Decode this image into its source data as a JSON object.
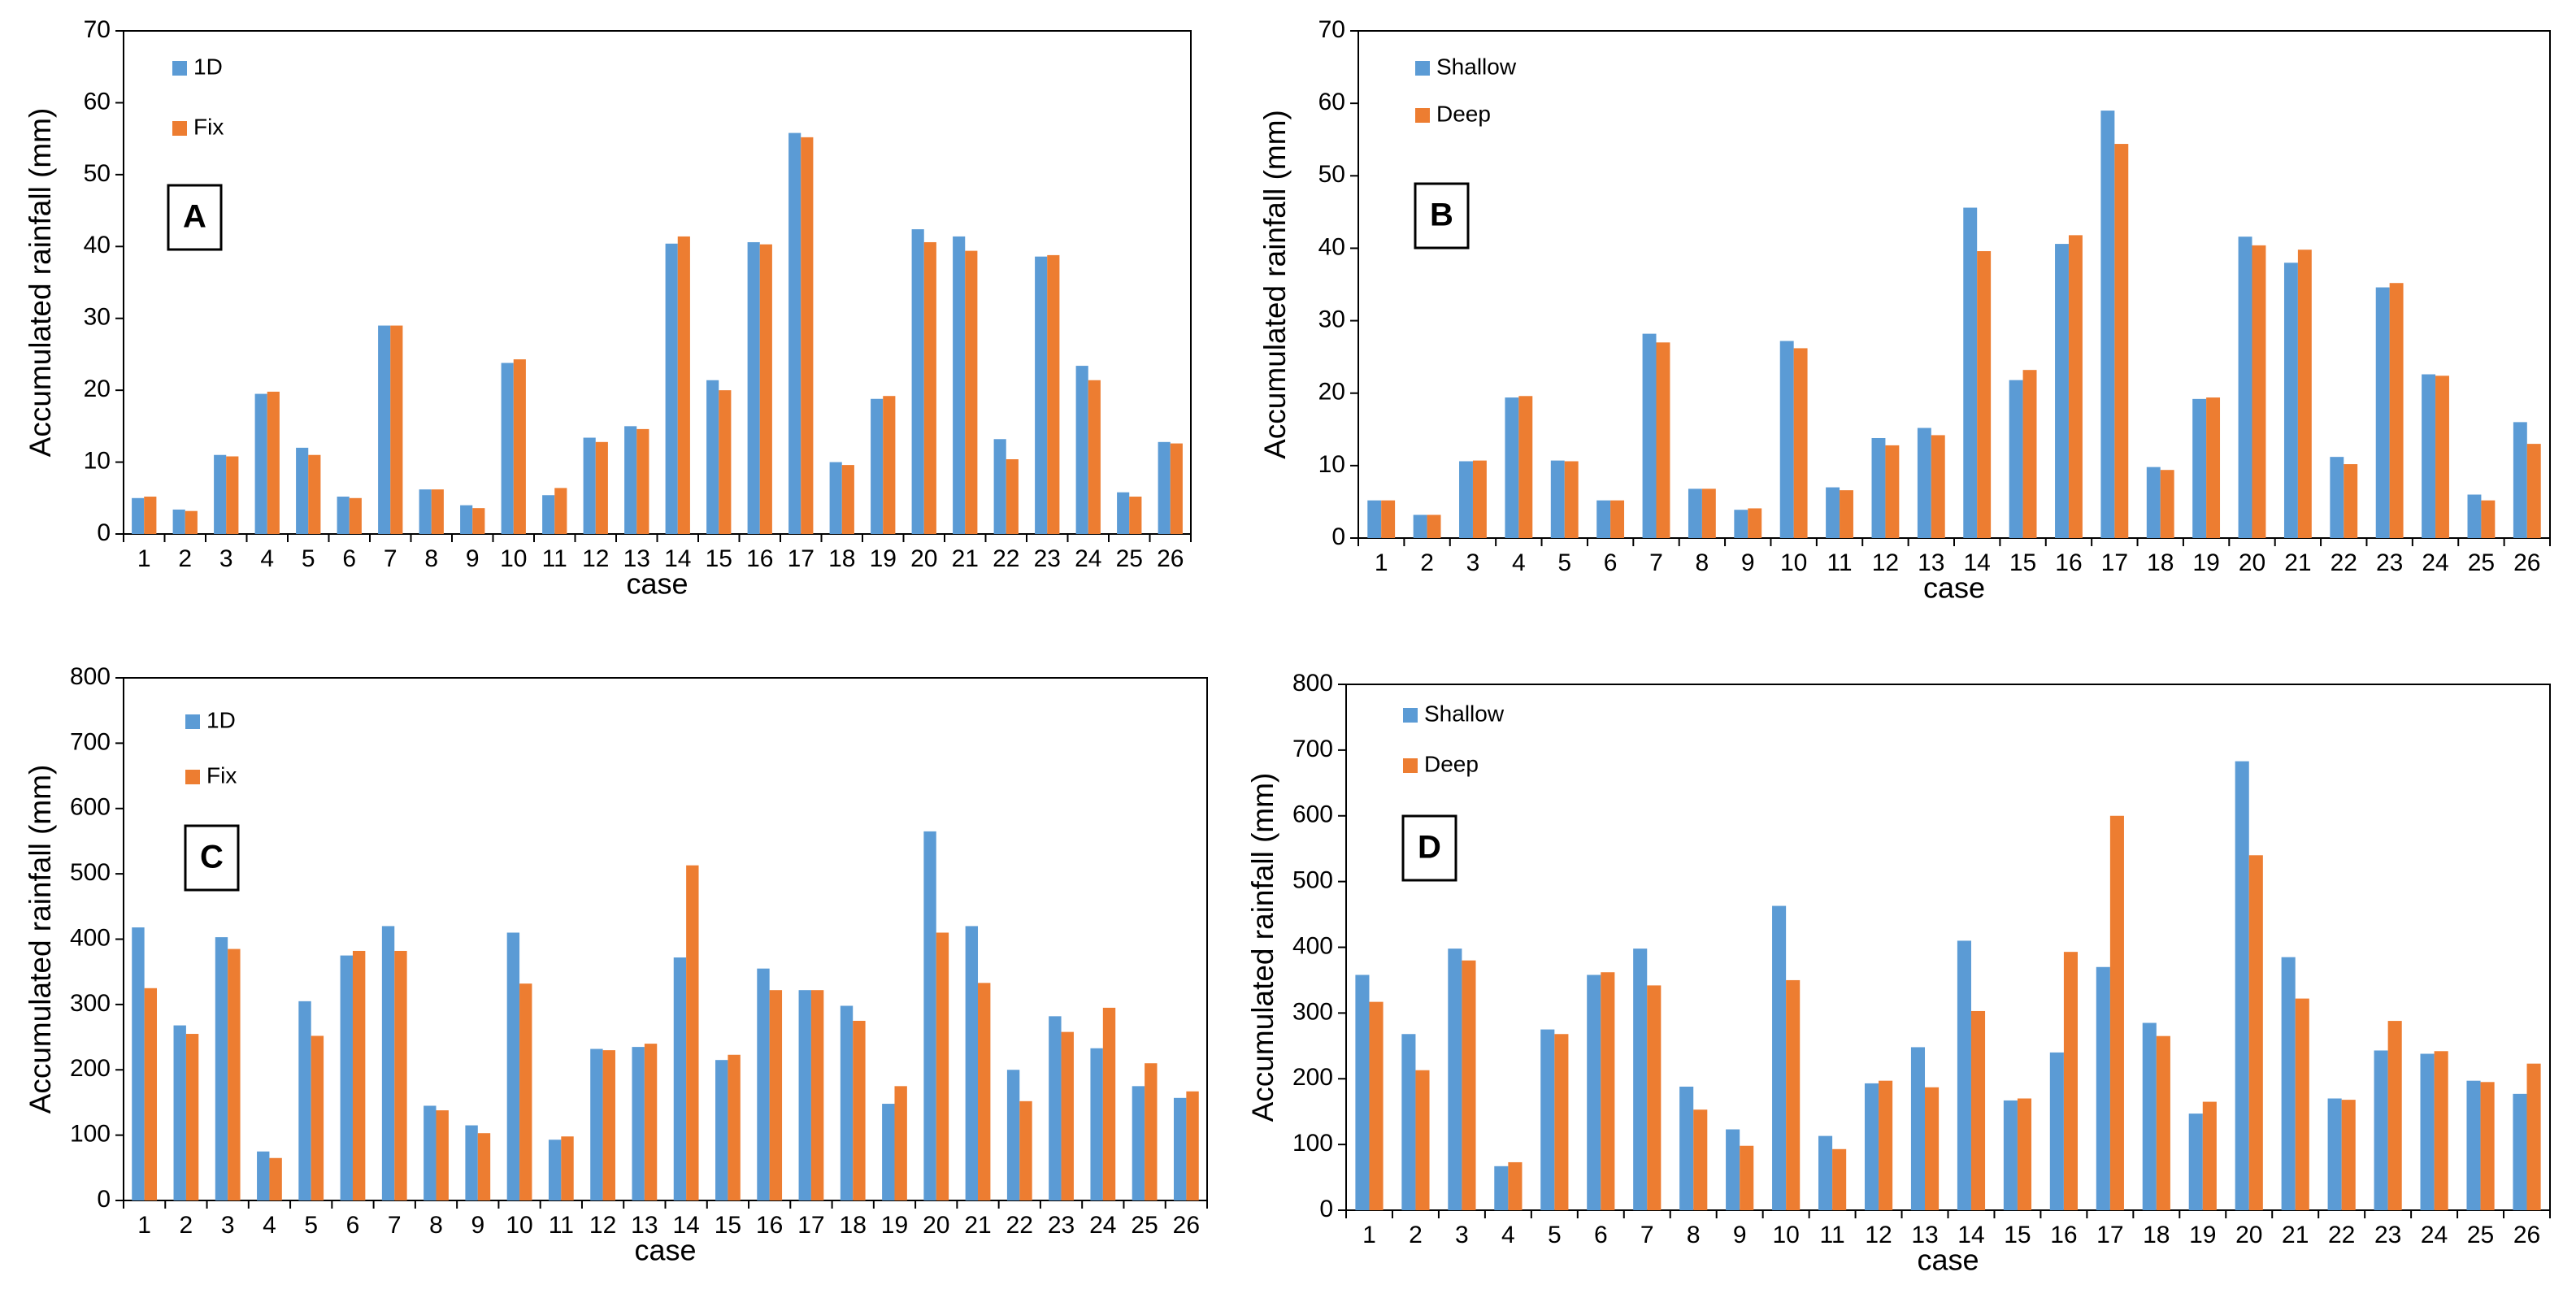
{
  "chart_data": [
    {
      "type": "bar",
      "label": "A",
      "ylabel": "Accumulated rainfall (mm)",
      "xlabel": "case",
      "categories": [
        "1",
        "2",
        "3",
        "4",
        "5",
        "6",
        "7",
        "8",
        "9",
        "10",
        "11",
        "12",
        "13",
        "14",
        "15",
        "16",
        "17",
        "18",
        "19",
        "20",
        "21",
        "22",
        "23",
        "24",
        "25",
        "26"
      ],
      "series": [
        {
          "name": "1D",
          "color": "#5b9bd5",
          "values": [
            5,
            3.4,
            11,
            19.5,
            12,
            5.2,
            29,
            6.2,
            4,
            23.8,
            5.4,
            13.4,
            15,
            40.4,
            21.4,
            40.6,
            55.8,
            10,
            18.8,
            42.4,
            41.4,
            13.2,
            38.6,
            23.4,
            5.8,
            12.8
          ]
        },
        {
          "name": "Fix",
          "color": "#ed7d31",
          "values": [
            5.2,
            3.2,
            10.8,
            19.8,
            11,
            5,
            29,
            6.2,
            3.6,
            24.3,
            6.4,
            12.8,
            14.6,
            41.4,
            20,
            40.3,
            55.2,
            9.6,
            19.2,
            40.6,
            39.4,
            10.4,
            38.8,
            21.4,
            5.2,
            12.6
          ]
        }
      ],
      "ylim": [
        0,
        70
      ],
      "yticks": [
        0,
        10,
        20,
        30,
        40,
        50,
        60,
        70
      ],
      "legend": "upper left"
    },
    {
      "type": "bar",
      "label": "B",
      "ylabel": "Accumulated rainfall (mm)",
      "xlabel": "case",
      "categories": [
        "1",
        "2",
        "3",
        "4",
        "5",
        "6",
        "7",
        "8",
        "9",
        "10",
        "11",
        "12",
        "13",
        "14",
        "15",
        "16",
        "17",
        "18",
        "19",
        "20",
        "21",
        "22",
        "23",
        "24",
        "25",
        "26"
      ],
      "series": [
        {
          "name": "Shallow",
          "color": "#5b9bd5",
          "values": [
            5.2,
            3.2,
            10.6,
            19.4,
            10.7,
            5.2,
            28.2,
            6.8,
            3.9,
            27.2,
            7,
            13.8,
            15.2,
            45.6,
            21.8,
            40.6,
            59,
            9.8,
            19.2,
            41.6,
            38,
            11.2,
            34.6,
            22.6,
            6,
            16
          ]
        },
        {
          "name": "Deep",
          "color": "#ed7d31",
          "values": [
            5.2,
            3.2,
            10.7,
            19.6,
            10.6,
            5.2,
            27,
            6.8,
            4.1,
            26.2,
            6.6,
            12.8,
            14.2,
            39.6,
            23.2,
            41.8,
            54.4,
            9.4,
            19.4,
            40.4,
            39.8,
            10.2,
            35.2,
            22.4,
            5.2,
            13
          ]
        }
      ],
      "ylim": [
        0,
        70
      ],
      "yticks": [
        0,
        10,
        20,
        30,
        40,
        50,
        60,
        70
      ],
      "legend": "upper left"
    },
    {
      "type": "bar",
      "label": "C",
      "ylabel": "Accumulated rainfall (mm)",
      "xlabel": "case",
      "categories": [
        "1",
        "2",
        "3",
        "4",
        "5",
        "6",
        "7",
        "8",
        "9",
        "10",
        "11",
        "12",
        "13",
        "14",
        "15",
        "16",
        "17",
        "18",
        "19",
        "20",
        "21",
        "22",
        "23",
        "24",
        "25",
        "26"
      ],
      "series": [
        {
          "name": "1D",
          "color": "#5b9bd5",
          "values": [
            418,
            268,
            403,
            75,
            305,
            375,
            420,
            145,
            115,
            410,
            93,
            232,
            235,
            372,
            215,
            355,
            322,
            298,
            148,
            565,
            420,
            200,
            282,
            233,
            175,
            157
          ]
        },
        {
          "name": "Fix",
          "color": "#ed7d31",
          "values": [
            325,
            255,
            385,
            65,
            252,
            382,
            382,
            138,
            103,
            332,
            98,
            230,
            240,
            513,
            223,
            322,
            322,
            275,
            175,
            410,
            333,
            152,
            258,
            295,
            210,
            167
          ]
        }
      ],
      "ylim": [
        0,
        800
      ],
      "yticks": [
        0,
        100,
        200,
        300,
        400,
        500,
        600,
        700,
        800
      ],
      "legend": "upper left"
    },
    {
      "type": "bar",
      "label": "D",
      "ylabel": "Accumulated rainfall (mm)",
      "xlabel": "case",
      "categories": [
        "1",
        "2",
        "3",
        "4",
        "5",
        "6",
        "7",
        "8",
        "9",
        "10",
        "11",
        "12",
        "13",
        "14",
        "15",
        "16",
        "17",
        "18",
        "19",
        "20",
        "21",
        "22",
        "23",
        "24",
        "25",
        "26"
      ],
      "series": [
        {
          "name": "Shallow",
          "color": "#5b9bd5",
          "values": [
            358,
            268,
            398,
            67,
            275,
            358,
            398,
            188,
            123,
            463,
            113,
            193,
            248,
            410,
            167,
            240,
            370,
            285,
            147,
            683,
            385,
            170,
            243,
            238,
            197,
            177
          ]
        },
        {
          "name": "Deep",
          "color": "#ed7d31",
          "values": [
            317,
            213,
            380,
            73,
            268,
            362,
            342,
            153,
            98,
            350,
            93,
            197,
            187,
            303,
            170,
            393,
            600,
            265,
            165,
            540,
            322,
            168,
            288,
            242,
            195,
            223
          ]
        }
      ],
      "ylim": [
        0,
        800
      ],
      "yticks": [
        0,
        100,
        200,
        300,
        400,
        500,
        600,
        700,
        800
      ],
      "legend": "upper left"
    }
  ]
}
